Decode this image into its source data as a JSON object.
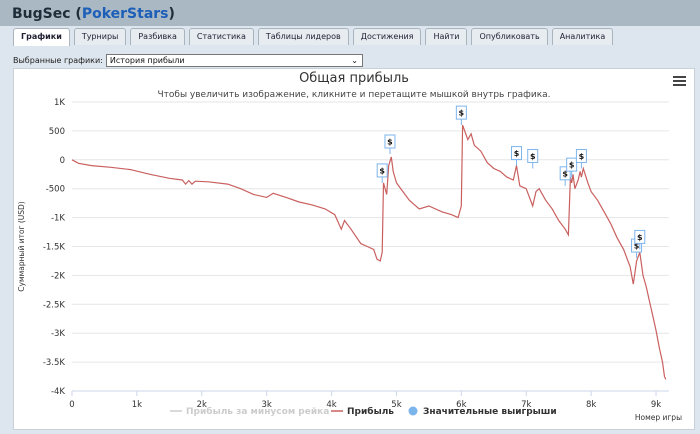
{
  "app": {
    "name": "BugSec",
    "site": "PokerStars"
  },
  "tabs": [
    {
      "label": "Графики",
      "active": true
    },
    {
      "label": "Турниры",
      "active": false
    },
    {
      "label": "Разбивка",
      "active": false
    },
    {
      "label": "Статистика",
      "active": false
    },
    {
      "label": "Таблицы лидеров",
      "active": false
    },
    {
      "label": "Достижения",
      "active": false
    },
    {
      "label": "Найти",
      "active": false
    },
    {
      "label": "Опубликовать",
      "active": false
    },
    {
      "label": "Аналитика",
      "active": false
    }
  ],
  "selector": {
    "label": "Выбранные графики:",
    "value": "История прибыли"
  },
  "colors": {
    "profit_line": "#c9605f",
    "rake_line": "#cccccc",
    "big_win_marker": "#7cb5ec"
  },
  "chart_data": {
    "type": "line",
    "title": "Общая прибыль",
    "subtitle": "Чтобы увеличить изображение, кликните и перетащите мышкой внутрь графика.",
    "ylabel": "Суммарный итог (USD)",
    "xlabel": "Номер игры",
    "xlim": [
      0,
      9200
    ],
    "ylim": [
      -4000,
      1000
    ],
    "x_ticks": [
      "0",
      "1k",
      "2k",
      "3k",
      "4k",
      "5k",
      "6k",
      "7k",
      "8k",
      "9k"
    ],
    "y_ticks": [
      "1K",
      "500",
      "0",
      "-500",
      "-1K",
      "-1.5K",
      "-2K",
      "-2.5K",
      "-3K",
      "-3.5K",
      "-4K"
    ],
    "legend": [
      {
        "name": "Прибыль за минусом рейка",
        "enabled": false
      },
      {
        "name": "Прибыль",
        "enabled": true
      },
      {
        "name": "Значительные выигрыши",
        "enabled": true
      }
    ],
    "series": [
      {
        "name": "Прибыль",
        "points": [
          [
            0,
            0
          ],
          [
            100,
            -60
          ],
          [
            300,
            -100
          ],
          [
            600,
            -130
          ],
          [
            900,
            -170
          ],
          [
            1200,
            -250
          ],
          [
            1500,
            -320
          ],
          [
            1700,
            -350
          ],
          [
            1750,
            -420
          ],
          [
            1800,
            -360
          ],
          [
            1850,
            -420
          ],
          [
            1900,
            -370
          ],
          [
            2100,
            -380
          ],
          [
            2400,
            -420
          ],
          [
            2600,
            -500
          ],
          [
            2800,
            -600
          ],
          [
            3000,
            -650
          ],
          [
            3100,
            -580
          ],
          [
            3300,
            -650
          ],
          [
            3500,
            -730
          ],
          [
            3700,
            -780
          ],
          [
            3900,
            -850
          ],
          [
            4050,
            -950
          ],
          [
            4150,
            -1200
          ],
          [
            4200,
            -1050
          ],
          [
            4300,
            -1200
          ],
          [
            4450,
            -1450
          ],
          [
            4550,
            -1500
          ],
          [
            4650,
            -1550
          ],
          [
            4700,
            -1720
          ],
          [
            4750,
            -1750
          ],
          [
            4780,
            -1600
          ],
          [
            4800,
            -400
          ],
          [
            4850,
            -600
          ],
          [
            4880,
            -100
          ],
          [
            4920,
            50
          ],
          [
            4950,
            -200
          ],
          [
            5000,
            -400
          ],
          [
            5100,
            -550
          ],
          [
            5200,
            -700
          ],
          [
            5350,
            -850
          ],
          [
            5500,
            -800
          ],
          [
            5700,
            -900
          ],
          [
            5850,
            -950
          ],
          [
            5950,
            -1000
          ],
          [
            6000,
            -800
          ],
          [
            6020,
            600
          ],
          [
            6100,
            350
          ],
          [
            6150,
            450
          ],
          [
            6200,
            250
          ],
          [
            6300,
            150
          ],
          [
            6400,
            -50
          ],
          [
            6500,
            -150
          ],
          [
            6600,
            -200
          ],
          [
            6700,
            -300
          ],
          [
            6800,
            -350
          ],
          [
            6850,
            -100
          ],
          [
            6900,
            -450
          ],
          [
            7000,
            -500
          ],
          [
            7100,
            -800
          ],
          [
            7150,
            -550
          ],
          [
            7200,
            -500
          ],
          [
            7300,
            -700
          ],
          [
            7400,
            -850
          ],
          [
            7500,
            -1050
          ],
          [
            7600,
            -1200
          ],
          [
            7650,
            -1300
          ],
          [
            7680,
            -300
          ],
          [
            7700,
            -400
          ],
          [
            7720,
            -250
          ],
          [
            7750,
            -500
          ],
          [
            7800,
            -350
          ],
          [
            7830,
            -200
          ],
          [
            7850,
            -300
          ],
          [
            7880,
            -150
          ],
          [
            7950,
            -400
          ],
          [
            8000,
            -550
          ],
          [
            8100,
            -700
          ],
          [
            8200,
            -900
          ],
          [
            8300,
            -1100
          ],
          [
            8400,
            -1350
          ],
          [
            8500,
            -1550
          ],
          [
            8600,
            -1850
          ],
          [
            8650,
            -2150
          ],
          [
            8700,
            -1750
          ],
          [
            8750,
            -1600
          ],
          [
            8800,
            -2000
          ],
          [
            8850,
            -2200
          ],
          [
            8900,
            -2450
          ],
          [
            8950,
            -2700
          ],
          [
            9000,
            -2950
          ],
          [
            9050,
            -3250
          ],
          [
            9100,
            -3500
          ],
          [
            9130,
            -3750
          ],
          [
            9150,
            -3800
          ]
        ]
      }
    ],
    "big_wins": [
      {
        "x": 4780,
        "y": -400,
        "label": "$"
      },
      {
        "x": 4900,
        "y": 100,
        "label": "$"
      },
      {
        "x": 6000,
        "y": 600,
        "label": "$"
      },
      {
        "x": 6850,
        "y": -100,
        "label": "$"
      },
      {
        "x": 7100,
        "y": -150,
        "label": "$"
      },
      {
        "x": 7600,
        "y": -450,
        "label": "$"
      },
      {
        "x": 7700,
        "y": -300,
        "label": "$"
      },
      {
        "x": 7850,
        "y": -150,
        "label": "$"
      },
      {
        "x": 8700,
        "y": -1700,
        "label": "$"
      },
      {
        "x": 8750,
        "y": -1550,
        "label": "$"
      }
    ]
  }
}
